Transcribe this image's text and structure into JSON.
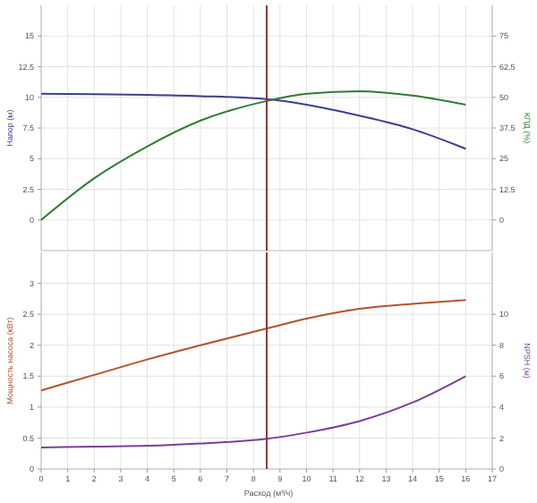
{
  "chart_data": [
    {
      "type": "line",
      "ylabel": "Напор (м)",
      "y2label": "КПД (%)",
      "xlim": [
        0,
        17
      ],
      "ylim": [
        -2.5,
        17.5
      ],
      "y2lim": [
        -12.5,
        87.5
      ],
      "yticks": [
        0,
        2.5,
        5,
        7.5,
        10,
        12.5,
        15
      ],
      "y2ticks": [
        0,
        12.5,
        25,
        37.5,
        50,
        62.5,
        75
      ],
      "xticks": [
        0,
        1,
        2,
        3,
        4,
        5,
        6,
        7,
        8,
        9,
        10,
        11,
        12,
        13,
        14,
        15,
        16,
        17
      ],
      "tick_labels": "y",
      "grid": true,
      "ref_lines": [
        {
          "axis": "x",
          "value": 8.5,
          "color": "#8b3a3a"
        }
      ],
      "series": [
        {
          "color": "#3b3f8f",
          "x": [
            0,
            2,
            4,
            6,
            8.5,
            10,
            12,
            14,
            16
          ],
          "values": [
            10.3,
            10.25,
            10.2,
            10.1,
            9.85,
            9.4,
            8.5,
            7.4,
            5.8
          ]
        },
        {
          "color": "#2e7d32",
          "axis": "y2",
          "x": [
            0,
            2,
            4,
            6,
            8.5,
            10,
            12,
            14,
            16
          ],
          "values": [
            0,
            17,
            30,
            40.5,
            48.5,
            51.5,
            52.5,
            50.7,
            47
          ]
        }
      ]
    },
    {
      "type": "line",
      "ylabel": "Мощность насоса (кВт)",
      "y2label": "NPSH (м)",
      "xlabel": "Расход (м³/ч)",
      "xlim": [
        0,
        17
      ],
      "ylim": [
        0,
        3.5
      ],
      "y2lim": [
        0,
        14
      ],
      "yticks": [
        0,
        0.5,
        1,
        1.5,
        2,
        2.5,
        3
      ],
      "y2ticks": [
        0,
        2,
        4,
        6,
        8,
        10
      ],
      "xticks": [
        0,
        1,
        2,
        3,
        4,
        5,
        6,
        7,
        8,
        9,
        10,
        11,
        12,
        13,
        14,
        15,
        16,
        17
      ],
      "grid": true,
      "ref_lines": [
        {
          "axis": "x",
          "value": 8.5,
          "color": "#8b3a3a"
        }
      ],
      "series": [
        {
          "color": "#b5532a",
          "x": [
            0,
            2,
            4,
            6,
            8.5,
            10,
            12,
            14,
            16
          ],
          "values": [
            1.27,
            1.52,
            1.77,
            2.0,
            2.27,
            2.43,
            2.59,
            2.67,
            2.73
          ]
        },
        {
          "color": "#7b3f99",
          "axis": "y2",
          "x": [
            0,
            2,
            4,
            6,
            8.5,
            10,
            12,
            14,
            16
          ],
          "values": [
            1.39,
            1.45,
            1.5,
            1.65,
            1.95,
            2.35,
            3.1,
            4.3,
            6.0
          ]
        }
      ]
    }
  ]
}
